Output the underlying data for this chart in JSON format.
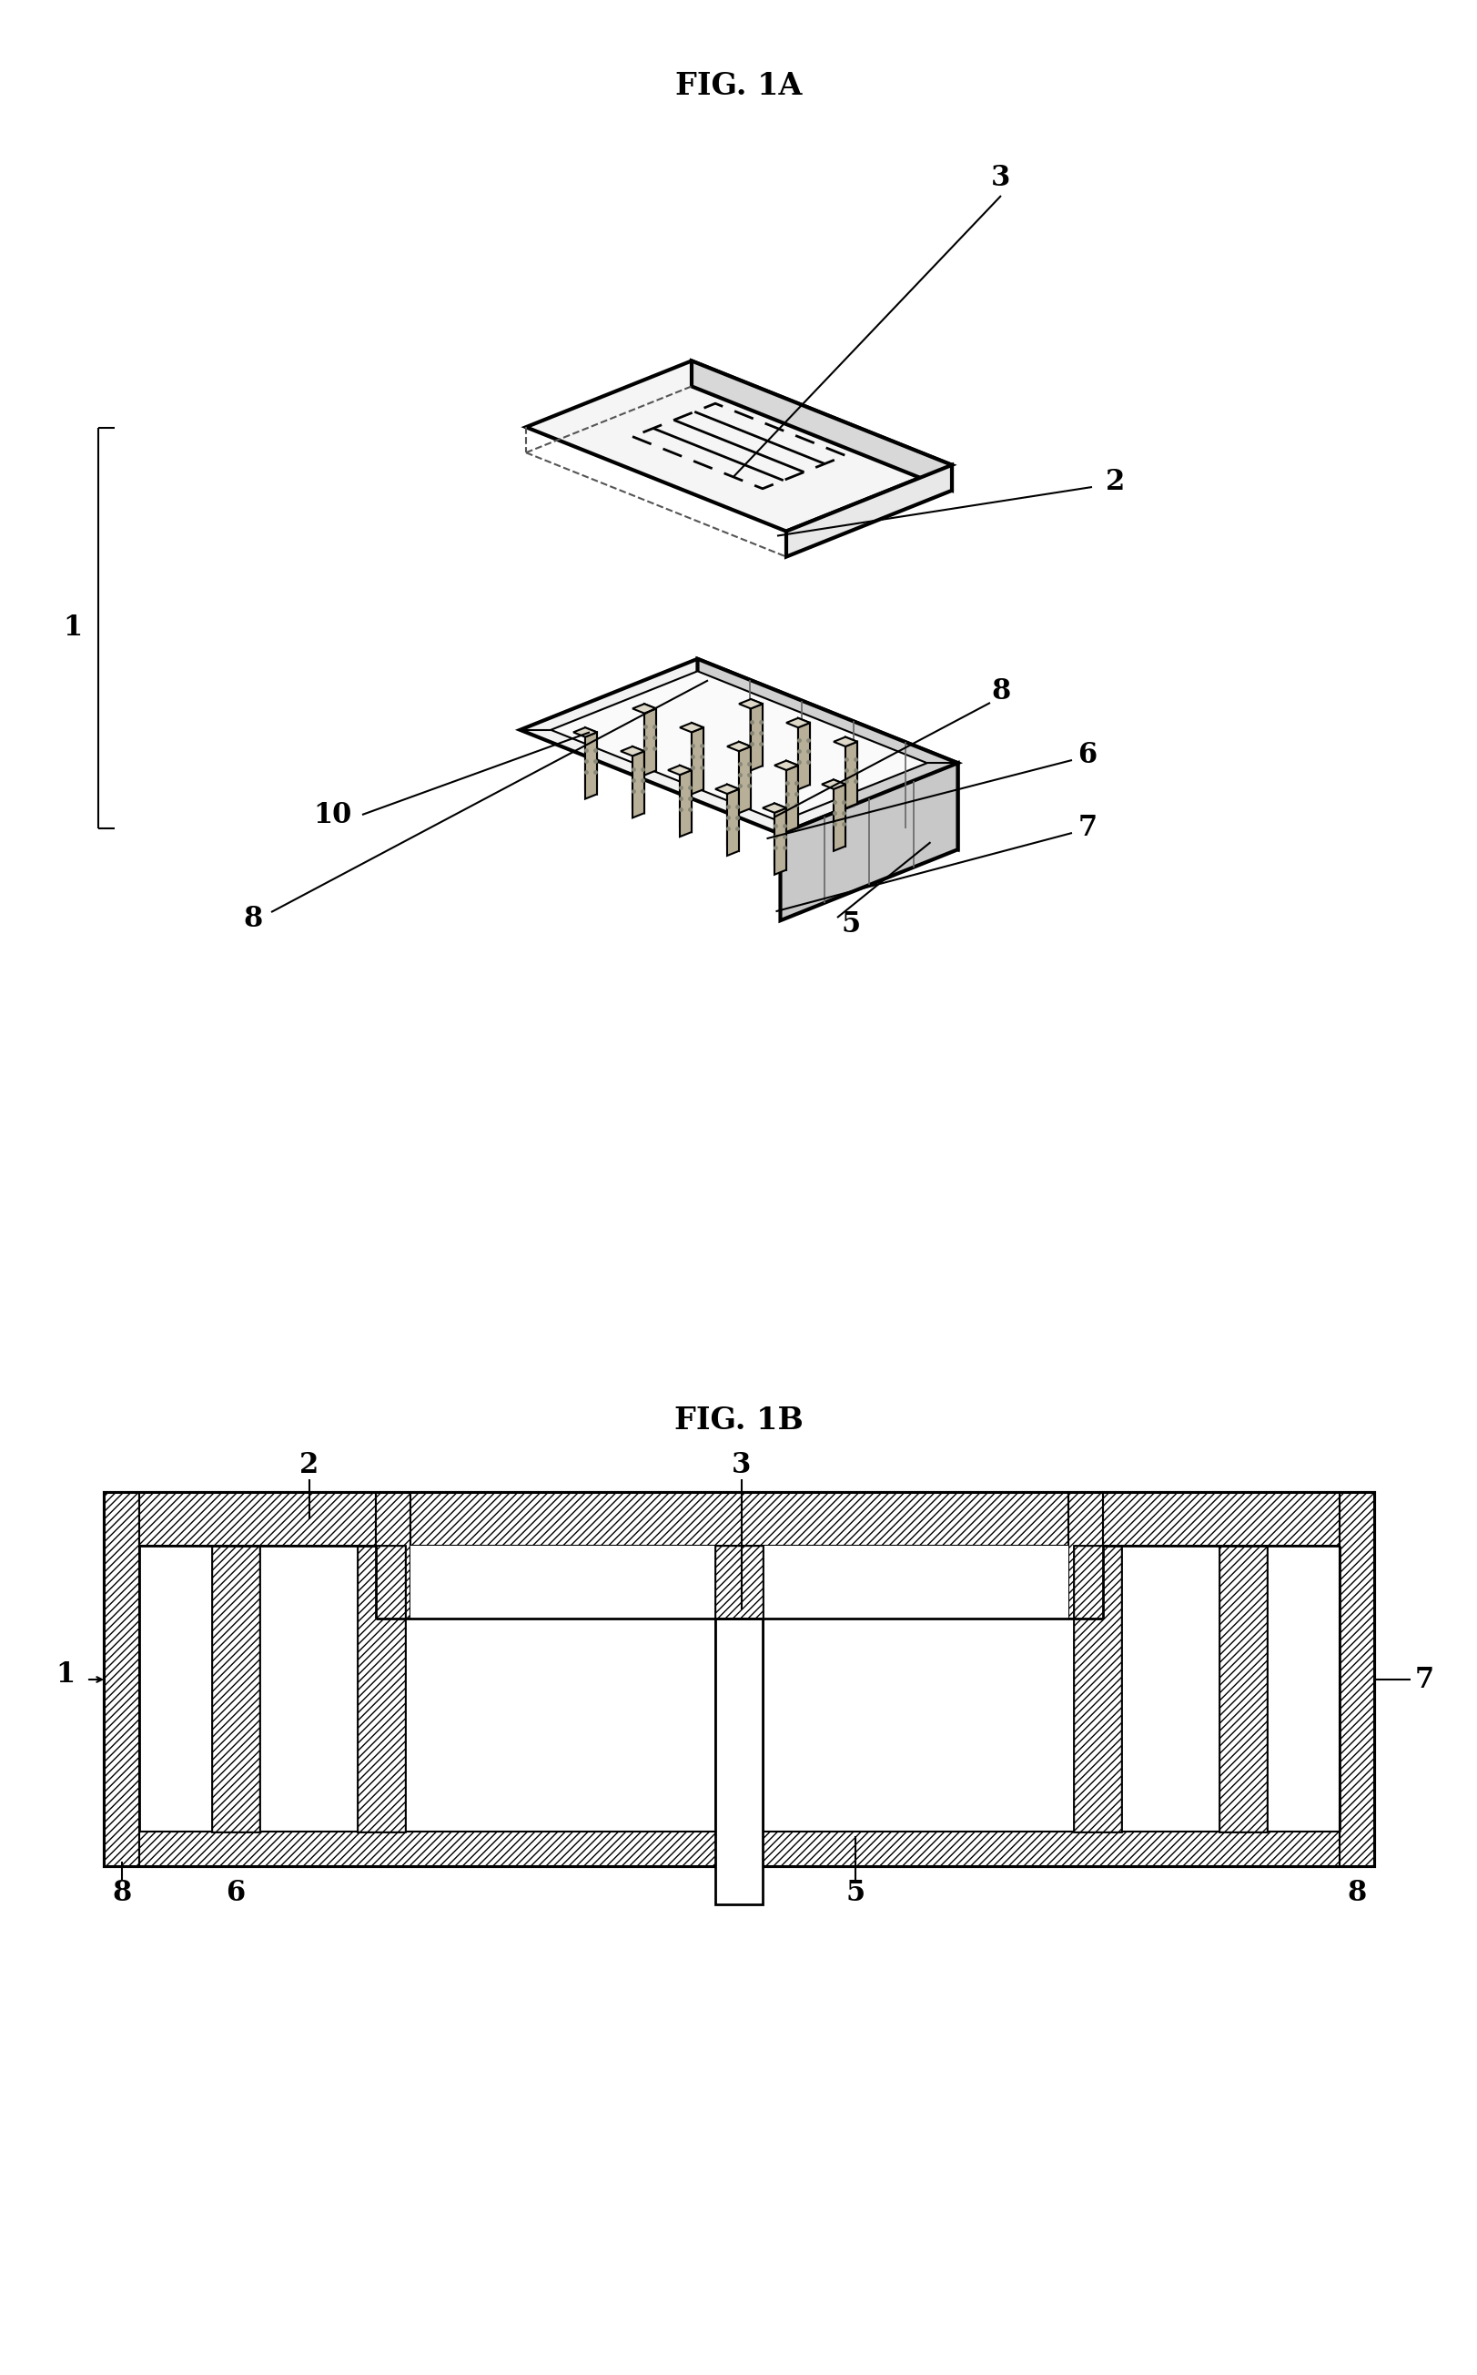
{
  "fig_title_1a": "FIG. 1A",
  "fig_title_1b": "FIG. 1B",
  "background_color": "#ffffff",
  "line_color": "#000000",
  "label_fontsize": 20,
  "title_fontsize": 24,
  "pillar_color": "#c8bfa8",
  "pillar_dot_color": "#888878",
  "face_color_top": "#f0f0f0",
  "face_color_side": "#d8d8d8",
  "face_color_front": "#e4e4e4"
}
